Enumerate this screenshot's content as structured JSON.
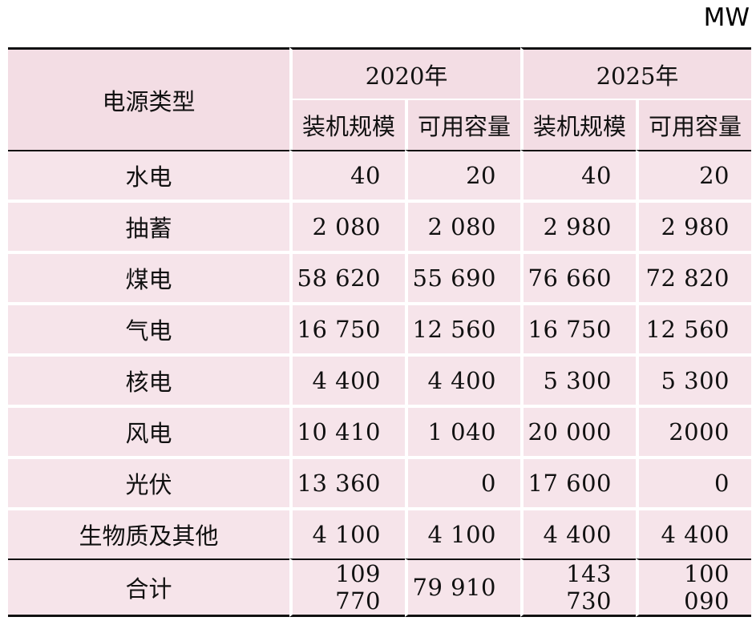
{
  "unit_label": "MW",
  "header": {
    "row_label": "电源类型",
    "years": [
      "2020年",
      "2025年"
    ],
    "sub_columns": [
      "装机规模",
      "可用容量",
      "装机规模",
      "可用容量"
    ]
  },
  "rows": [
    {
      "type": "水电",
      "cap2020": "40",
      "avail2020": "20",
      "cap2025": "40",
      "avail2025": "20"
    },
    {
      "type": "抽蓄",
      "cap2020": "2 080",
      "avail2020": "2 080",
      "cap2025": "2 980",
      "avail2025": "2 980"
    },
    {
      "type": "煤电",
      "cap2020": "58 620",
      "avail2020": "55 690",
      "cap2025": "76 660",
      "avail2025": "72 820"
    },
    {
      "type": "气电",
      "cap2020": "16 750",
      "avail2020": "12 560",
      "cap2025": "16 750",
      "avail2025": "12 560"
    },
    {
      "type": "核电",
      "cap2020": "4 400",
      "avail2020": "4 400",
      "cap2025": "5 300",
      "avail2025": "5 300"
    },
    {
      "type": "风电",
      "cap2020": "10 410",
      "avail2020": "1 040",
      "cap2025": "20 000",
      "avail2025": "2000"
    },
    {
      "type": "光伏",
      "cap2020": "13 360",
      "avail2020": "0",
      "cap2025": "17 600",
      "avail2025": "0"
    },
    {
      "type": "生物质及其他",
      "cap2020": "4 100",
      "avail2020": "4 100",
      "cap2025": "4 400",
      "avail2025": "4 400"
    }
  ],
  "total": {
    "type": "合计",
    "cap2020": "109 770",
    "avail2020": "79 910",
    "cap2025": "143 730",
    "avail2025": "100 090"
  },
  "colors": {
    "header_bg": "#f3dde4",
    "row_bg": "#f6e4ea",
    "rule": "#111111"
  }
}
